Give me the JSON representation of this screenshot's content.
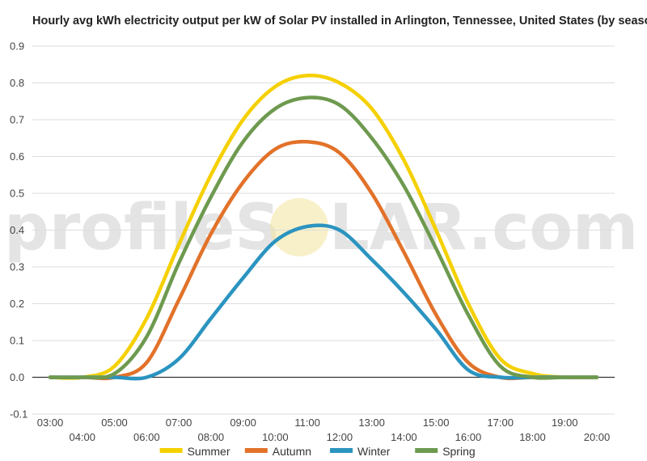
{
  "chart_data": {
    "type": "line",
    "title": "Hourly avg kWh electricity output per kW of Solar PV installed in Arlington, Tennessee, United States (by season)",
    "xlabel": "",
    "ylabel": "",
    "x": [
      "03:00",
      "04:00",
      "05:00",
      "06:00",
      "07:00",
      "08:00",
      "09:00",
      "10:00",
      "11:00",
      "12:00",
      "13:00",
      "14:00",
      "15:00",
      "16:00",
      "17:00",
      "18:00",
      "19:00",
      "20:00"
    ],
    "x_ticks": [
      "03:00",
      "04:00",
      "05:00",
      "06:00",
      "07:00",
      "08:00",
      "09:00",
      "10:00",
      "11:00",
      "12:00",
      "13:00",
      "14:00",
      "15:00",
      "16:00",
      "17:00",
      "18:00",
      "19:00",
      "20:00"
    ],
    "ylim": [
      -0.1,
      0.9
    ],
    "y_ticks": [
      "-0.1",
      "0.0",
      "0.1",
      "0.2",
      "0.3",
      "0.4",
      "0.5",
      "0.6",
      "0.7",
      "0.8",
      "0.9"
    ],
    "grid": true,
    "legend_position": "bottom",
    "series": [
      {
        "name": "Summer",
        "color": "#F5D000",
        "values": [
          0.0,
          0.0,
          0.03,
          0.16,
          0.36,
          0.55,
          0.7,
          0.79,
          0.82,
          0.8,
          0.73,
          0.59,
          0.4,
          0.2,
          0.05,
          0.01,
          0.0,
          0.0
        ]
      },
      {
        "name": "Autumn",
        "color": "#E2722A",
        "values": [
          0.0,
          0.0,
          0.0,
          0.04,
          0.21,
          0.39,
          0.53,
          0.62,
          0.64,
          0.61,
          0.5,
          0.34,
          0.17,
          0.04,
          0.0,
          0.0,
          0.0,
          0.0
        ]
      },
      {
        "name": "Winter",
        "color": "#2B94C0",
        "values": [
          0.0,
          0.0,
          0.0,
          0.0,
          0.05,
          0.16,
          0.27,
          0.37,
          0.41,
          0.4,
          0.32,
          0.23,
          0.13,
          0.02,
          0.0,
          0.0,
          0.0,
          0.0
        ]
      },
      {
        "name": "Spring",
        "color": "#6E9A4F",
        "values": [
          0.0,
          0.0,
          0.01,
          0.11,
          0.31,
          0.49,
          0.64,
          0.73,
          0.76,
          0.74,
          0.65,
          0.52,
          0.35,
          0.17,
          0.03,
          0.0,
          0.0,
          0.0
        ]
      }
    ]
  },
  "watermark": {
    "text_left": "profileS",
    "text_right": "LAR.com"
  }
}
